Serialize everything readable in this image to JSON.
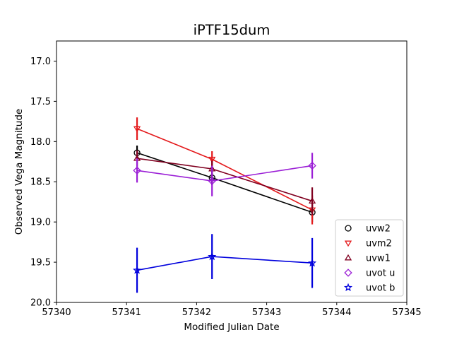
{
  "chart_data": {
    "type": "scatter",
    "title": "iPTF15dum",
    "xlabel": "Modified Julian Date",
    "ylabel": "Observed Vega Magnitude",
    "xlim": [
      57340,
      57345
    ],
    "ylim": [
      20.0,
      16.75
    ],
    "y_inverted": true,
    "xticks": [
      57340,
      57341,
      57342,
      57343,
      57344,
      57345
    ],
    "xtick_labels": [
      "57340",
      "57341",
      "57342",
      "57343",
      "57344",
      "57345"
    ],
    "yticks": [
      17.0,
      17.5,
      18.0,
      18.5,
      19.0,
      19.5,
      20.0
    ],
    "ytick_labels": [
      "17.0",
      "17.5",
      "18.0",
      "18.5",
      "19.0",
      "19.5",
      "20.0"
    ],
    "grid": false,
    "legend_position": "lower-right",
    "series": [
      {
        "name": "uvw2",
        "color": "#000000",
        "marker": "circle",
        "x": [
          57341.15,
          57342.22,
          57343.65
        ],
        "y": [
          18.14,
          18.45,
          18.88
        ],
        "yerr": [
          0.09,
          0.09,
          0.12
        ]
      },
      {
        "name": "uvm2",
        "color": "#e41a1c",
        "marker": "triangle-down",
        "x": [
          57341.15,
          57342.22,
          57343.65
        ],
        "y": [
          17.84,
          18.22,
          18.85
        ],
        "yerr": [
          0.14,
          0.1,
          0.18
        ]
      },
      {
        "name": "uvw1",
        "color": "#800020",
        "marker": "triangle-up",
        "x": [
          57341.15,
          57342.22,
          57343.65
        ],
        "y": [
          18.21,
          18.34,
          18.74
        ],
        "yerr": [
          0.1,
          0.1,
          0.17
        ]
      },
      {
        "name": "uvot u",
        "color": "#9b1fd6",
        "marker": "diamond",
        "x": [
          57341.15,
          57342.22,
          57343.65
        ],
        "y": [
          18.36,
          18.49,
          18.3
        ],
        "yerr": [
          0.15,
          0.19,
          0.16
        ]
      },
      {
        "name": "uvot b",
        "color": "#0000dd",
        "marker": "star",
        "x": [
          57341.15,
          57342.22,
          57343.65
        ],
        "y": [
          19.6,
          19.43,
          19.51
        ],
        "yerr": [
          0.28,
          0.28,
          0.31
        ]
      }
    ]
  }
}
